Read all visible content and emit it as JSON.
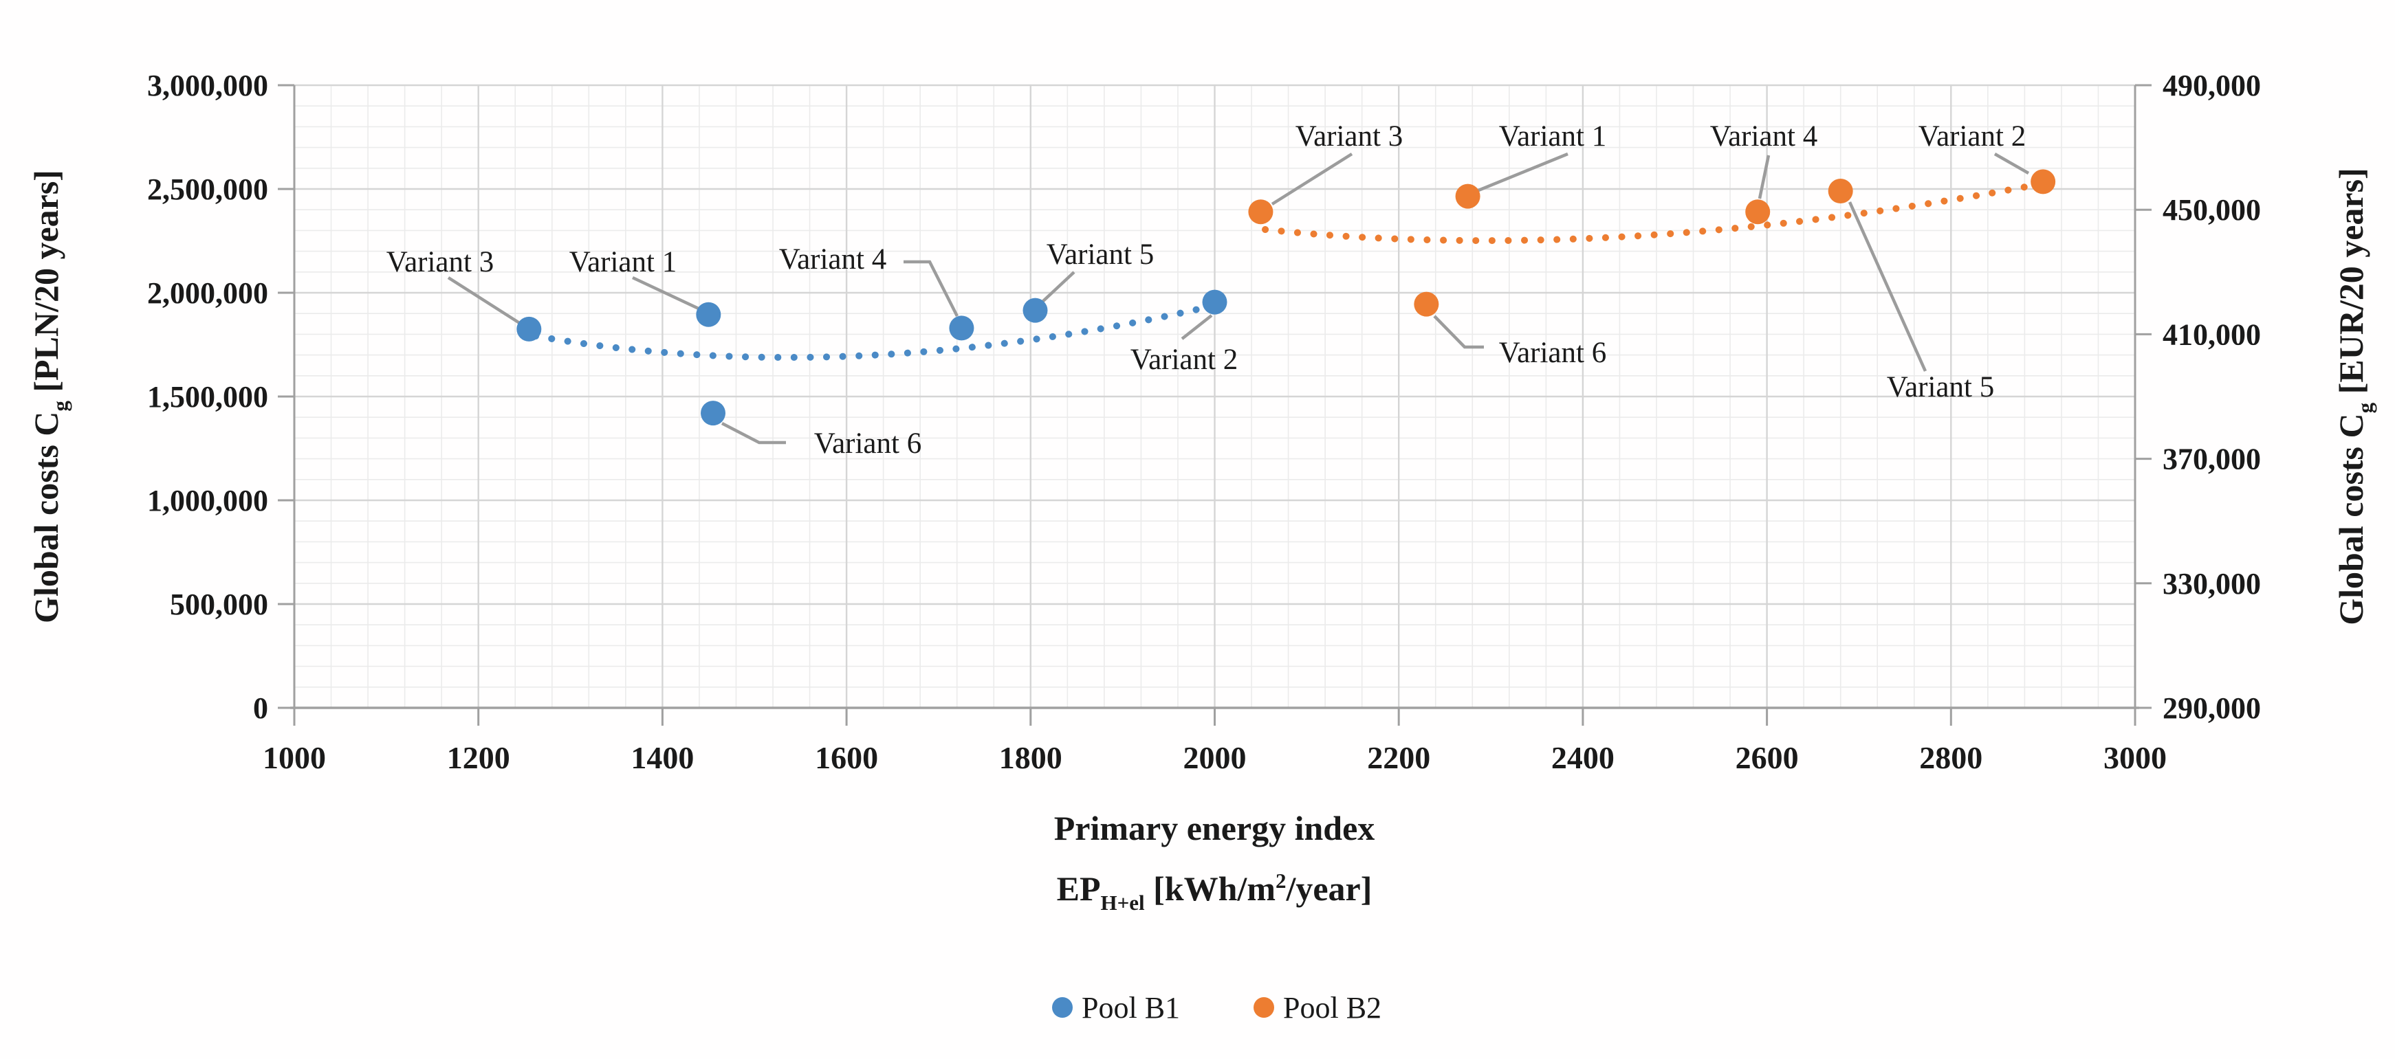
{
  "figure": {
    "description_label": "Scatter chart of global costs versus primary energy index for two variant pools"
  },
  "chart_data": {
    "type": "scatter",
    "title": "",
    "grid": {
      "minor_color": "#ebebeb",
      "major_color": "#d5d5d5",
      "axis_color": "#a0a0a0",
      "grid_on": true
    },
    "x_axis": {
      "title_lines": [
        [
          {
            "t": "Primary energy index"
          }
        ],
        [
          {
            "t": "EP"
          },
          {
            "t": "H+el",
            "sub": true
          },
          {
            "t": " [kWh/m"
          },
          {
            "t": "2",
            "sup": true
          },
          {
            "t": "/year]"
          }
        ]
      ],
      "min": 1000,
      "max": 3000,
      "major_step": 200,
      "minor_step": 40,
      "tick_labels": [
        "1000",
        "1200",
        "1400",
        "1600",
        "1800",
        "2000",
        "2200",
        "2400",
        "2600",
        "2800",
        "3000"
      ]
    },
    "y_axis_left": {
      "title_parts": [
        {
          "t": "Global costs C"
        },
        {
          "t": "g",
          "sub": true
        },
        {
          "t": " [PLN/20 years]"
        }
      ],
      "min": 0,
      "max": 3000000,
      "major_step": 500000,
      "minor_step": 100000,
      "tick_labels": [
        "0",
        "500,000",
        "1,000,000",
        "1,500,000",
        "2,000,000",
        "2,500,000",
        "3,000,000"
      ]
    },
    "y_axis_right": {
      "title_parts": [
        {
          "t": "Global costs C"
        },
        {
          "t": "g",
          "sub": true
        },
        {
          "t": " [EUR/20 years]"
        }
      ],
      "min": 290000,
      "max": 490000,
      "major_step": 40000,
      "tick_labels": [
        "290,000",
        "330,000",
        "370,000",
        "410,000",
        "450,000",
        "490,000"
      ]
    },
    "series": [
      {
        "name": "Pool B1",
        "axis": "left",
        "point_color": "#4a8ac6",
        "label_color": "#2e75b6",
        "trendline_style": "dotted",
        "points": [
          {
            "variant": "Variant 1",
            "x": 1450,
            "cost_pln": 1895000,
            "cost_eur_scale": 416000
          },
          {
            "variant": "Variant 2",
            "x": 2000,
            "cost_pln": 1955000,
            "cost_eur_scale": 420000
          },
          {
            "variant": "Variant 3",
            "x": 1255,
            "cost_pln": 1825000,
            "cost_eur_scale": 412000
          },
          {
            "variant": "Variant 4",
            "x": 1725,
            "cost_pln": 1830000,
            "cost_eur_scale": 412000
          },
          {
            "variant": "Variant 5",
            "x": 1805,
            "cost_pln": 1915000,
            "cost_eur_scale": 418000
          },
          {
            "variant": "Variant 6",
            "x": 1455,
            "cost_pln": 1420000,
            "cost_eur_scale": 385000
          }
        ]
      },
      {
        "name": "Pool B2",
        "axis": "right",
        "point_color": "#ed7d31",
        "label_color": "#ed7d31",
        "trendline_style": "dotted",
        "points": [
          {
            "variant": "Variant 1",
            "x": 2275,
            "cost_pln": 2465000,
            "cost_eur_scale": 454000
          },
          {
            "variant": "Variant 2",
            "x": 2900,
            "cost_pln": 2535000,
            "cost_eur_scale": 459000
          },
          {
            "variant": "Variant 3",
            "x": 2050,
            "cost_pln": 2390000,
            "cost_eur_scale": 449000
          },
          {
            "variant": "Variant 4",
            "x": 2590,
            "cost_pln": 2390000,
            "cost_eur_scale": 449000
          },
          {
            "variant": "Variant 5",
            "x": 2680,
            "cost_pln": 2490000,
            "cost_eur_scale": 456000
          },
          {
            "variant": "Variant 6",
            "x": 2230,
            "cost_pln": 1945000,
            "cost_eur_scale": 420000
          }
        ]
      }
    ],
    "legend": {
      "position": "bottom-center",
      "items": [
        {
          "label": "Pool B1",
          "color": "#4a8ac6"
        },
        {
          "label": "Pool B2",
          "color": "#ed7d31"
        }
      ]
    }
  }
}
